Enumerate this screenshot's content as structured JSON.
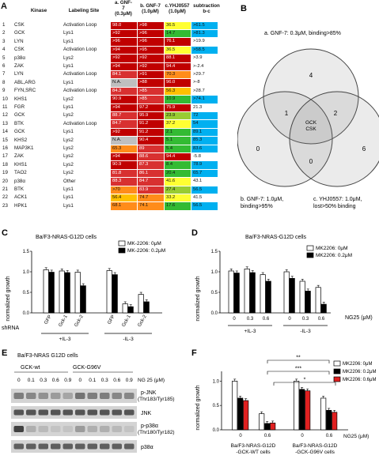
{
  "panelA": {
    "letter": "A",
    "headers": {
      "kinase": "Kinase",
      "site": "Labeling Site",
      "a_l1": "a. GNF-",
      "a_l2": "7",
      "a_l3": "(0.3μM)",
      "b_l1": "b. GNF-7",
      "b_l2": "(1.0μM)",
      "c_l1": "c.YHJ0557",
      "c_l2": "(1.0μM)",
      "d_l1": "subtraction",
      "d_l2": "b-c"
    },
    "rows": [
      {
        "n": "1",
        "k": "CSK",
        "s": "Activation Loop",
        "a": "98.0",
        "b": ">98",
        "c": "36.5",
        "d": ">61.5",
        "ac": "#c00000",
        "bc": "#c00000",
        "cc": "#ffff33",
        "dc": "#00b0f0"
      },
      {
        "n": "2",
        "k": "GCK",
        "s": "Lys1",
        "a": ">92",
        "b": ">96",
        "c": "14.7",
        "d": ">81.3",
        "ac": "#c00000",
        "bc": "#c00000",
        "cc": "#33bb33",
        "dc": "#00b0f0"
      },
      {
        "n": "3",
        "k": "LYN",
        "s": "Lys1",
        "a": ">96",
        "b": ">96",
        "c": "76.1",
        "d": ">19.9",
        "ac": "#c00000",
        "bc": "#c00000",
        "cc": "#c00000",
        "dc": "#ffffff"
      },
      {
        "n": "4",
        "k": "CSK",
        "s": "Activation Loop",
        "a": ">94",
        "b": ">95",
        "c": "36.5",
        "d": ">58.5",
        "ac": "#c00000",
        "bc": "#c00000",
        "cc": "#ffff33",
        "dc": "#00b0f0"
      },
      {
        "n": "5",
        "k": "p38α",
        "s": "Lys2",
        "a": ">92",
        "b": ">92",
        "c": "88.1",
        "d": ">3.9",
        "ac": "#c00000",
        "bc": "#c00000",
        "cc": "#c00000",
        "dc": "#ffffff"
      },
      {
        "n": "6",
        "k": "ZAK",
        "s": "Lys1",
        "a": ">94",
        "b": ">92",
        "c": "94.4",
        "d": ">-2.4",
        "ac": "#c00000",
        "bc": "#c00000",
        "cc": "#c00000",
        "dc": "#ffffff"
      },
      {
        "n": "7",
        "k": "LYN",
        "s": "Activation Loop",
        "a": "84.1",
        "b": ">91",
        "c": "70.3",
        "d": ">29.7",
        "ac": "#d83030",
        "bc": "#c00000",
        "cc": "#ff8c1a",
        "dc": "#ffffff"
      },
      {
        "n": "8",
        "k": "ABL,ARG",
        "s": "Lys1",
        "a": "N.A.",
        "b": ">88",
        "c": "96.0",
        "d": ">-8",
        "ac": "#bfbfbf",
        "bc": "#c00000",
        "cc": "#c00000",
        "dc": "#ffffff"
      },
      {
        "n": "9",
        "k": "FYN,SRC",
        "s": "Activation Loop",
        "a": "84.3",
        "b": ">85",
        "c": "56.3",
        "d": ">28.7",
        "ac": "#d83030",
        "bc": "#d83030",
        "cc": "#ffc000",
        "dc": "#ffffff"
      },
      {
        "n": "10",
        "k": "KHS1",
        "s": "Lys2",
        "a": "90.9",
        "b": ">85",
        "c": "10.9",
        "d": ">74.1",
        "ac": "#c00000",
        "bc": "#d83030",
        "cc": "#33bb33",
        "dc": "#00b0f0"
      },
      {
        "n": "11",
        "k": "FGR",
        "s": "Lys1",
        "a": ">94",
        "b": "97.2",
        "c": "75.9",
        "d": "21.3",
        "ac": "#c00000",
        "bc": "#c00000",
        "cc": "#c00000",
        "dc": "#ffffff"
      },
      {
        "n": "12",
        "k": "GCK",
        "s": "Lys2",
        "a": "88.7",
        "b": "95.9",
        "c": "23.9",
        "d": "72",
        "ac": "#d83030",
        "bc": "#c00000",
        "cc": "#99cc33",
        "dc": "#00b0f0"
      },
      {
        "n": "13",
        "k": "BTK",
        "s": "Activation Loop",
        "a": "84.7",
        "b": "91.2",
        "c": "37.2",
        "d": "54",
        "ac": "#d83030",
        "bc": "#c00000",
        "cc": "#ffff33",
        "dc": "#00b0f0"
      },
      {
        "n": "14",
        "k": "GCK",
        "s": "Lys1",
        "a": ">92",
        "b": "91.2",
        "c": "2.1",
        "d": "89.1",
        "ac": "#c00000",
        "bc": "#c00000",
        "cc": "#33bb33",
        "dc": "#00b0f0"
      },
      {
        "n": "15",
        "k": "KHS2",
        "s": "Lys2",
        "a": "N.A.",
        "b": "90.4",
        "c": "5.1",
        "d": "85.3",
        "ac": "#bfbfbf",
        "bc": "#c00000",
        "cc": "#33bb33",
        "dc": "#00b0f0"
      },
      {
        "n": "16",
        "k": "MAP3K1",
        "s": "Lys2",
        "a": "65.3",
        "b": "89",
        "c": "5.4",
        "d": "83.6",
        "ac": "#ff8c1a",
        "bc": "#d83030",
        "cc": "#33bb33",
        "dc": "#00b0f0"
      },
      {
        "n": "17",
        "k": "ZAK",
        "s": "Lys2",
        "a": ">94",
        "b": "88.6",
        "c": "94.4",
        "d": "-5.8",
        "ac": "#c00000",
        "bc": "#d83030",
        "cc": "#c00000",
        "dc": "#ffffff"
      },
      {
        "n": "18",
        "k": "KHS1",
        "s": "Lys2",
        "a": "90.9",
        "b": "87.3",
        "c": "8.4",
        "d": "78.9",
        "ac": "#c00000",
        "bc": "#d83030",
        "cc": "#33bb33",
        "dc": "#00b0f0"
      },
      {
        "n": "19",
        "k": "TAO2",
        "s": "Lys2",
        "a": "81.8",
        "b": "86.1",
        "c": "20.4",
        "d": "65.7",
        "ac": "#d83030",
        "bc": "#d83030",
        "cc": "#33bb33",
        "dc": "#00b0f0"
      },
      {
        "n": "20",
        "k": "p38α",
        "s": "Other",
        "a": "88.3",
        "b": "84.7",
        "c": "41.6",
        "d": "43.1",
        "ac": "#d83030",
        "bc": "#d83030",
        "cc": "#ffff33",
        "dc": "#ffffff"
      },
      {
        "n": "21",
        "k": "BTK",
        "s": "Lys1",
        "a": ">70",
        "b": "83.9",
        "c": "27.4",
        "d": "56.5",
        "ac": "#ff8c1a",
        "bc": "#d83030",
        "cc": "#99cc33",
        "dc": "#00b0f0"
      },
      {
        "n": "22",
        "k": "ACK1",
        "s": "Lys1",
        "a": "56.4",
        "b": "74.7",
        "c": "33.2",
        "d": "41.5",
        "ac": "#ffc000",
        "bc": "#ff8c1a",
        "cc": "#ffff33",
        "dc": "#ffffff"
      },
      {
        "n": "23",
        "k": "HPK1",
        "s": "Lys1",
        "a": "68.1",
        "b": "74.1",
        "c": "17.6",
        "d": "56.5",
        "ac": "#ff8c1a",
        "bc": "#ff8c1a",
        "cc": "#33bb33",
        "dc": "#00b0f0"
      }
    ]
  },
  "panelB": {
    "letter": "B",
    "label_a": "a. GNF-7: 0.3μM, binding>85%",
    "label_b1": "b. GNF-7: 1.0μM,",
    "label_b2": "binding>95%",
    "label_c1": "c. YHJ0557: 1.0μM,",
    "label_c2": "lost>50% binding",
    "counts": {
      "a_only": "4",
      "b_only": "0",
      "c_only": "6",
      "ab": "1",
      "ac": "2",
      "bc": "0",
      "center1": "GCK",
      "center2": "CSK"
    }
  },
  "panelC": {
    "letter": "C",
    "title": "Ba/F3-NRAS-G12D cells",
    "ylabel": "normalized growth",
    "legend": [
      "MK-2206: 0μM",
      "MK-2206: 0.2μM"
    ],
    "row_label": "shRNA",
    "group_labels": [
      "+IL-3",
      "-IL-3"
    ],
    "chart_data": {
      "type": "bar",
      "categories": [
        "GFP",
        "Gck-1",
        "Gck-2",
        "GFP",
        "Gck-1",
        "Gck-2"
      ],
      "ylim": [
        0,
        1.5
      ],
      "yticks": [
        "0.0",
        "0.5",
        "1.0",
        "1.5"
      ],
      "series": [
        {
          "name": "MK-2206: 0μM",
          "values": [
            1.05,
            1.02,
            0.99,
            1.03,
            0.22,
            0.45
          ]
        },
        {
          "name": "MK-2206: 0.2μM",
          "values": [
            0.99,
            0.98,
            0.66,
            0.93,
            0.15,
            0.27
          ]
        }
      ]
    }
  },
  "panelD": {
    "letter": "D",
    "title": "Ba/F3-NRAS-G12D cells",
    "ylabel": "normalized growth",
    "legend": [
      "MK2206: 0μM",
      "MK2206: 0.2μM"
    ],
    "xunit": "NG25 (μM)",
    "group_labels": [
      "+IL-3",
      "-IL-3"
    ],
    "chart_data": {
      "type": "bar",
      "categories": [
        "0",
        "0.3",
        "0.6",
        "0",
        "0.3",
        "0.6"
      ],
      "ylim": [
        0,
        1.5
      ],
      "yticks": [
        "0.0",
        "0.5",
        "1.0",
        "1.5"
      ],
      "series": [
        {
          "name": "MK2206: 0μM",
          "values": [
            1.02,
            1.07,
            0.93,
            1.0,
            0.77,
            0.62
          ]
        },
        {
          "name": "MK2206: 0.2μM",
          "values": [
            0.97,
            0.98,
            0.77,
            0.84,
            0.53,
            0.21
          ]
        }
      ]
    }
  },
  "panelE": {
    "letter": "E",
    "title": "Ba/F3-NRAS G12D cells",
    "group1": "GCK-wt",
    "group2": "GCK-G96V",
    "doses": [
      "0",
      "0.1",
      "0.3",
      "0.6",
      "0.9",
      "0",
      "0.1",
      "0.3",
      "0.6",
      "0.9"
    ],
    "dose_unit": "NG 25 (μM)",
    "bands": [
      {
        "l1": "p-JNK",
        "l2": "(Thr183/Tyr185)"
      },
      {
        "l1": "JNK",
        "l2": ""
      },
      {
        "l1": "p-p38α",
        "l2": "(Thr180/Tyr182)"
      },
      {
        "l1": "p38α",
        "l2": ""
      }
    ],
    "intensities": [
      [
        0.55,
        0.5,
        0.45,
        0.4,
        0.35,
        0.6,
        0.55,
        0.55,
        0.5,
        0.5
      ],
      [
        0.75,
        0.75,
        0.75,
        0.75,
        0.75,
        0.75,
        0.75,
        0.75,
        0.75,
        0.75
      ],
      [
        0.85,
        0.3,
        0.25,
        0.2,
        0.2,
        0.4,
        0.3,
        0.3,
        0.25,
        0.2
      ],
      [
        0.7,
        0.7,
        0.7,
        0.7,
        0.7,
        0.7,
        0.7,
        0.7,
        0.7,
        0.7
      ]
    ]
  },
  "panelF": {
    "letter": "F",
    "ylabel": "normalized growth",
    "legend": [
      "MK2206: 0μM",
      "MK2206: 0.2μM",
      "MK2206: 0.6μM"
    ],
    "xunit": "NG25 (μM)",
    "group_labels": [
      "Ba/F3-NRAS-G12D\n-GCK-WT cells",
      "Ba/F3-NRAS-G12D\n-GCK-G96V cells"
    ],
    "group1_l1": "Ba/F3-NRAS-G12D",
    "group1_l2": "-GCK-WT cells",
    "group2_l1": "Ba/F3-NRAS-G12D",
    "group2_l2": "-GCK-G96V cells",
    "sig": [
      "**",
      "***",
      "*"
    ],
    "colors": [
      "#ffffff",
      "#000000",
      "#e02020"
    ],
    "chart_data": {
      "type": "bar",
      "categories": [
        "0",
        "0.6",
        "0",
        "0.6"
      ],
      "ylim": [
        0,
        1.2
      ],
      "yticks": [
        "0.0",
        "0.5",
        "1.0"
      ],
      "series": [
        {
          "name": "MK2206: 0μM",
          "values": [
            1.0,
            0.33,
            1.0,
            0.65
          ]
        },
        {
          "name": "MK2206: 0.2μM",
          "values": [
            0.65,
            0.13,
            0.83,
            0.4
          ]
        },
        {
          "name": "MK2206: 0.6μM",
          "values": [
            0.6,
            0.14,
            0.8,
            0.36
          ]
        }
      ]
    }
  }
}
